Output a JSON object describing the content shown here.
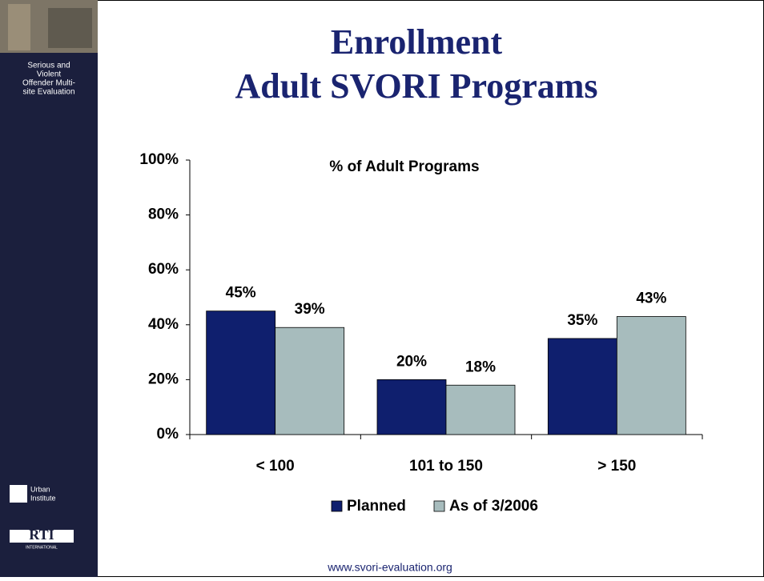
{
  "slide": {
    "title": [
      "Enrollment",
      "Adult SVORI Programs"
    ],
    "sidebar_text": [
      "Serious and",
      "Violent",
      "Offender Multi-",
      "site Evaluation"
    ],
    "urban_logo": [
      "Urban",
      "Institute"
    ],
    "rti_logo": [
      "RTI",
      "INTERNATIONAL"
    ],
    "footer": "www.svori-evaluation.org"
  },
  "chart_data": {
    "type": "bar",
    "title": "% of Adult Programs",
    "categories": [
      "< 100",
      "101 to 150",
      "> 150"
    ],
    "series": [
      {
        "name": "Planned",
        "color": "#0f1f6e",
        "values": [
          45,
          20,
          35
        ],
        "value_labels": [
          "45%",
          "20%",
          "35%"
        ]
      },
      {
        "name": "As of 3/2006",
        "color": "#a7bcbd",
        "values": [
          39,
          18,
          43
        ],
        "value_labels": [
          "39%",
          "18%",
          "43%"
        ]
      }
    ],
    "ylim": [
      0,
      100
    ],
    "yticks": [
      {
        "value": 0,
        "label": "0%"
      },
      {
        "value": 20,
        "label": "20%"
      },
      {
        "value": 40,
        "label": "40%"
      },
      {
        "value": 60,
        "label": "60%"
      },
      {
        "value": 80,
        "label": "80%"
      },
      {
        "value": 100,
        "label": "100%"
      }
    ],
    "grid": false,
    "legend": "bottom"
  }
}
